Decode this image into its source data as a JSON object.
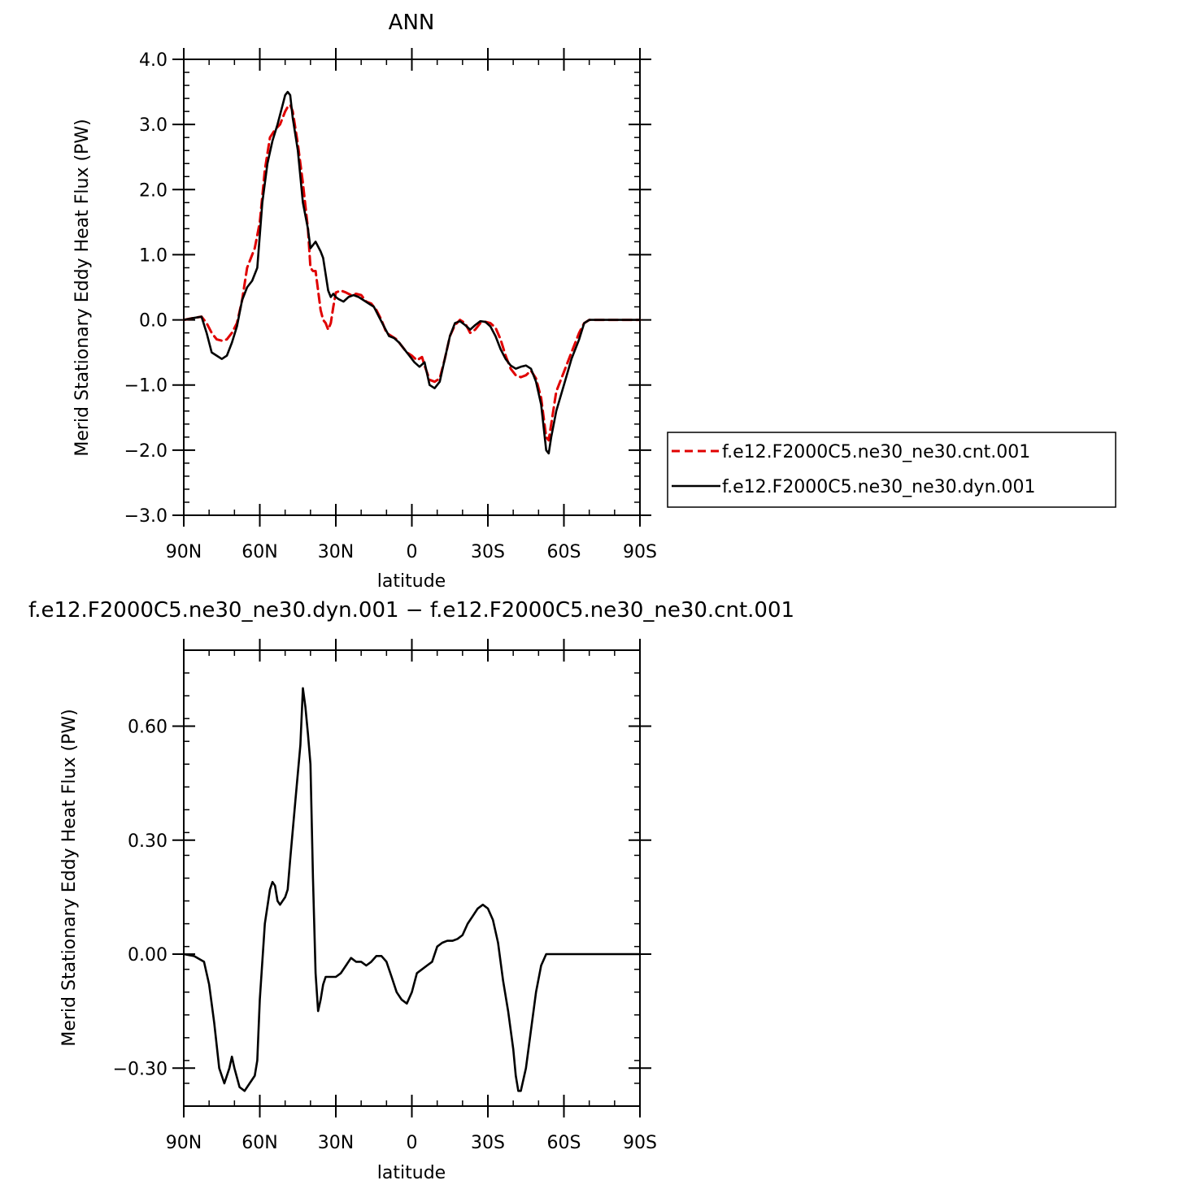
{
  "chart_data": [
    {
      "type": "line",
      "title": "ANN",
      "xlabel": "latitude",
      "ylabel": "Merid Stationary Eddy Heat Flux (PW)",
      "xlim": [
        90,
        -90
      ],
      "ylim": [
        -3.0,
        4.0
      ],
      "x_ticks": [
        90,
        60,
        30,
        0,
        -30,
        -60,
        -90
      ],
      "x_tick_labels": [
        "90N",
        "60N",
        "30N",
        "0",
        "30S",
        "60S",
        "90S"
      ],
      "y_ticks": [
        -3.0,
        -2.0,
        -1.0,
        0.0,
        1.0,
        2.0,
        3.0,
        4.0
      ],
      "y_tick_labels": [
        "−3.0",
        "−2.0",
        "−1.0",
        "0.0",
        "1.0",
        "2.0",
        "3.0",
        "4.0"
      ],
      "legend": "right",
      "series": [
        {
          "name": "f.e12.F2000C5.ne30_ne30.cnt.001",
          "color": "#e00000",
          "dash": true,
          "points": [
            [
              90,
              0.0
            ],
            [
              86,
              0.03
            ],
            [
              83,
              0.05
            ],
            [
              81,
              -0.05
            ],
            [
              79,
              -0.2
            ],
            [
              77,
              -0.3
            ],
            [
              75,
              -0.32
            ],
            [
              73,
              -0.3
            ],
            [
              71,
              -0.2
            ],
            [
              69,
              -0.05
            ],
            [
              67,
              0.3
            ],
            [
              65,
              0.8
            ],
            [
              62,
              1.1
            ],
            [
              60,
              1.5
            ],
            [
              58,
              2.3
            ],
            [
              56,
              2.8
            ],
            [
              54,
              2.92
            ],
            [
              52,
              3.0
            ],
            [
              50,
              3.2
            ],
            [
              49,
              3.27
            ],
            [
              48,
              3.3
            ],
            [
              47,
              3.2
            ],
            [
              45,
              2.7
            ],
            [
              43,
              2.1
            ],
            [
              41,
              1.4
            ],
            [
              40,
              0.8
            ],
            [
              39,
              0.75
            ],
            [
              38,
              0.75
            ],
            [
              37,
              0.45
            ],
            [
              36,
              0.15
            ],
            [
              35,
              0.0
            ],
            [
              34,
              -0.05
            ],
            [
              33,
              -0.15
            ],
            [
              32,
              -0.05
            ],
            [
              31,
              0.2
            ],
            [
              30,
              0.42
            ],
            [
              28,
              0.45
            ],
            [
              26,
              0.42
            ],
            [
              24,
              0.38
            ],
            [
              22,
              0.4
            ],
            [
              20,
              0.38
            ],
            [
              18,
              0.28
            ],
            [
              16,
              0.25
            ],
            [
              14,
              0.15
            ],
            [
              12,
              0.0
            ],
            [
              10,
              -0.2
            ],
            [
              8,
              -0.25
            ],
            [
              6,
              -0.3
            ],
            [
              4,
              -0.4
            ],
            [
              2,
              -0.5
            ],
            [
              0,
              -0.55
            ],
            [
              -2,
              -0.62
            ],
            [
              -4,
              -0.57
            ],
            [
              -5,
              -0.7
            ],
            [
              -7,
              -0.92
            ],
            [
              -9,
              -0.95
            ],
            [
              -11,
              -0.9
            ],
            [
              -13,
              -0.6
            ],
            [
              -15,
              -0.25
            ],
            [
              -17,
              -0.08
            ],
            [
              -19,
              0.0
            ],
            [
              -21,
              -0.05
            ],
            [
              -23,
              -0.2
            ],
            [
              -25,
              -0.15
            ],
            [
              -27,
              -0.05
            ],
            [
              -29,
              -0.03
            ],
            [
              -31,
              -0.05
            ],
            [
              -33,
              -0.12
            ],
            [
              -35,
              -0.3
            ],
            [
              -37,
              -0.55
            ],
            [
              -39,
              -0.75
            ],
            [
              -41,
              -0.85
            ],
            [
              -43,
              -0.88
            ],
            [
              -45,
              -0.85
            ],
            [
              -47,
              -0.78
            ],
            [
              -49,
              -0.9
            ],
            [
              -51,
              -1.2
            ],
            [
              -53,
              -1.8
            ],
            [
              -54,
              -1.85
            ],
            [
              -55,
              -1.6
            ],
            [
              -57,
              -1.1
            ],
            [
              -60,
              -0.8
            ],
            [
              -63,
              -0.5
            ],
            [
              -66,
              -0.2
            ],
            [
              -68,
              -0.05
            ],
            [
              -70,
              0.0
            ],
            [
              -90,
              0.0
            ]
          ]
        },
        {
          "name": "f.e12.F2000C5.ne30_ne30.dyn.001",
          "color": "#000000",
          "dash": false,
          "points": [
            [
              90,
              0.0
            ],
            [
              86,
              0.03
            ],
            [
              83,
              0.05
            ],
            [
              81,
              -0.2
            ],
            [
              79,
              -0.5
            ],
            [
              77,
              -0.55
            ],
            [
              75,
              -0.6
            ],
            [
              73,
              -0.55
            ],
            [
              71,
              -0.35
            ],
            [
              69,
              -0.1
            ],
            [
              67,
              0.3
            ],
            [
              65,
              0.5
            ],
            [
              63,
              0.6
            ],
            [
              61,
              0.8
            ],
            [
              59,
              1.8
            ],
            [
              57,
              2.4
            ],
            [
              55,
              2.75
            ],
            [
              53,
              3.0
            ],
            [
              51,
              3.3
            ],
            [
              50,
              3.45
            ],
            [
              49,
              3.5
            ],
            [
              48,
              3.45
            ],
            [
              47,
              3.1
            ],
            [
              45,
              2.6
            ],
            [
              43,
              1.8
            ],
            [
              41,
              1.4
            ],
            [
              40,
              1.1
            ],
            [
              38,
              1.2
            ],
            [
              36,
              1.05
            ],
            [
              35,
              0.95
            ],
            [
              34,
              0.7
            ],
            [
              33,
              0.45
            ],
            [
              32,
              0.35
            ],
            [
              31,
              0.4
            ],
            [
              30,
              0.35
            ],
            [
              29,
              0.32
            ],
            [
              27,
              0.28
            ],
            [
              25,
              0.35
            ],
            [
              23,
              0.38
            ],
            [
              21,
              0.35
            ],
            [
              19,
              0.3
            ],
            [
              17,
              0.25
            ],
            [
              15,
              0.2
            ],
            [
              13,
              0.05
            ],
            [
              11,
              -0.1
            ],
            [
              9,
              -0.25
            ],
            [
              7,
              -0.28
            ],
            [
              5,
              -0.35
            ],
            [
              3,
              -0.45
            ],
            [
              1,
              -0.55
            ],
            [
              -1,
              -0.65
            ],
            [
              -3,
              -0.72
            ],
            [
              -5,
              -0.65
            ],
            [
              -7,
              -1.0
            ],
            [
              -9,
              -1.05
            ],
            [
              -11,
              -0.95
            ],
            [
              -13,
              -0.6
            ],
            [
              -15,
              -0.25
            ],
            [
              -17,
              -0.05
            ],
            [
              -19,
              -0.02
            ],
            [
              -21,
              -0.08
            ],
            [
              -23,
              -0.15
            ],
            [
              -25,
              -0.08
            ],
            [
              -27,
              -0.02
            ],
            [
              -29,
              -0.03
            ],
            [
              -31,
              -0.1
            ],
            [
              -33,
              -0.25
            ],
            [
              -35,
              -0.45
            ],
            [
              -37,
              -0.6
            ],
            [
              -39,
              -0.7
            ],
            [
              -41,
              -0.75
            ],
            [
              -43,
              -0.72
            ],
            [
              -45,
              -0.7
            ],
            [
              -47,
              -0.75
            ],
            [
              -49,
              -0.95
            ],
            [
              -51,
              -1.3
            ],
            [
              -53,
              -2.0
            ],
            [
              -54,
              -2.05
            ],
            [
              -55,
              -1.8
            ],
            [
              -57,
              -1.4
            ],
            [
              -60,
              -1.0
            ],
            [
              -63,
              -0.6
            ],
            [
              -66,
              -0.3
            ],
            [
              -68,
              -0.05
            ],
            [
              -70,
              0.0
            ],
            [
              -90,
              0.0
            ]
          ]
        }
      ]
    },
    {
      "type": "line",
      "title": "f.e12.F2000C5.ne30_ne30.dyn.001 − f.e12.F2000C5.ne30_ne30.cnt.001",
      "xlabel": "latitude",
      "ylabel": "Merid Stationary Eddy Heat Flux (PW)",
      "xlim": [
        90,
        -90
      ],
      "ylim": [
        -0.4,
        0.8
      ],
      "x_ticks": [
        90,
        60,
        30,
        0,
        -30,
        -60,
        -90
      ],
      "x_tick_labels": [
        "90N",
        "60N",
        "30N",
        "0",
        "30S",
        "60S",
        "90S"
      ],
      "y_ticks": [
        -0.3,
        0.0,
        0.3,
        0.6
      ],
      "y_tick_labels": [
        "−0.30",
        "0.00",
        "0.30",
        "0.60"
      ],
      "series": [
        {
          "color": "#000000",
          "dash": false,
          "points": [
            [
              90,
              0.0
            ],
            [
              86,
              -0.005
            ],
            [
              82,
              -0.02
            ],
            [
              80,
              -0.08
            ],
            [
              78,
              -0.18
            ],
            [
              76,
              -0.3
            ],
            [
              74,
              -0.34
            ],
            [
              72,
              -0.3
            ],
            [
              71,
              -0.27
            ],
            [
              70,
              -0.3
            ],
            [
              68,
              -0.35
            ],
            [
              66,
              -0.36
            ],
            [
              64,
              -0.34
            ],
            [
              62,
              -0.32
            ],
            [
              61,
              -0.28
            ],
            [
              60,
              -0.12
            ],
            [
              58,
              0.08
            ],
            [
              56,
              0.17
            ],
            [
              55,
              0.19
            ],
            [
              54,
              0.18
            ],
            [
              53,
              0.14
            ],
            [
              52,
              0.13
            ],
            [
              50,
              0.15
            ],
            [
              49,
              0.17
            ],
            [
              48,
              0.25
            ],
            [
              46,
              0.4
            ],
            [
              44,
              0.55
            ],
            [
              43,
              0.7
            ],
            [
              42,
              0.65
            ],
            [
              41,
              0.58
            ],
            [
              40,
              0.5
            ],
            [
              39,
              0.2
            ],
            [
              38,
              -0.05
            ],
            [
              37,
              -0.15
            ],
            [
              36,
              -0.12
            ],
            [
              35,
              -0.08
            ],
            [
              34,
              -0.06
            ],
            [
              32,
              -0.06
            ],
            [
              30,
              -0.06
            ],
            [
              28,
              -0.05
            ],
            [
              26,
              -0.03
            ],
            [
              24,
              -0.01
            ],
            [
              22,
              -0.02
            ],
            [
              20,
              -0.02
            ],
            [
              18,
              -0.03
            ],
            [
              16,
              -0.02
            ],
            [
              14,
              -0.005
            ],
            [
              12,
              -0.005
            ],
            [
              10,
              -0.02
            ],
            [
              8,
              -0.06
            ],
            [
              6,
              -0.1
            ],
            [
              4,
              -0.12
            ],
            [
              2,
              -0.13
            ],
            [
              0,
              -0.1
            ],
            [
              -2,
              -0.05
            ],
            [
              -4,
              -0.04
            ],
            [
              -6,
              -0.03
            ],
            [
              -8,
              -0.02
            ],
            [
              -10,
              0.02
            ],
            [
              -12,
              0.03
            ],
            [
              -14,
              0.035
            ],
            [
              -16,
              0.035
            ],
            [
              -18,
              0.04
            ],
            [
              -20,
              0.05
            ],
            [
              -22,
              0.08
            ],
            [
              -24,
              0.1
            ],
            [
              -26,
              0.12
            ],
            [
              -28,
              0.13
            ],
            [
              -30,
              0.12
            ],
            [
              -32,
              0.09
            ],
            [
              -34,
              0.03
            ],
            [
              -36,
              -0.07
            ],
            [
              -38,
              -0.15
            ],
            [
              -40,
              -0.25
            ],
            [
              -41,
              -0.32
            ],
            [
              -42,
              -0.36
            ],
            [
              -43,
              -0.36
            ],
            [
              -45,
              -0.3
            ],
            [
              -47,
              -0.2
            ],
            [
              -49,
              -0.1
            ],
            [
              -51,
              -0.03
            ],
            [
              -53,
              0.0
            ],
            [
              -90,
              0.0
            ]
          ]
        }
      ]
    }
  ]
}
